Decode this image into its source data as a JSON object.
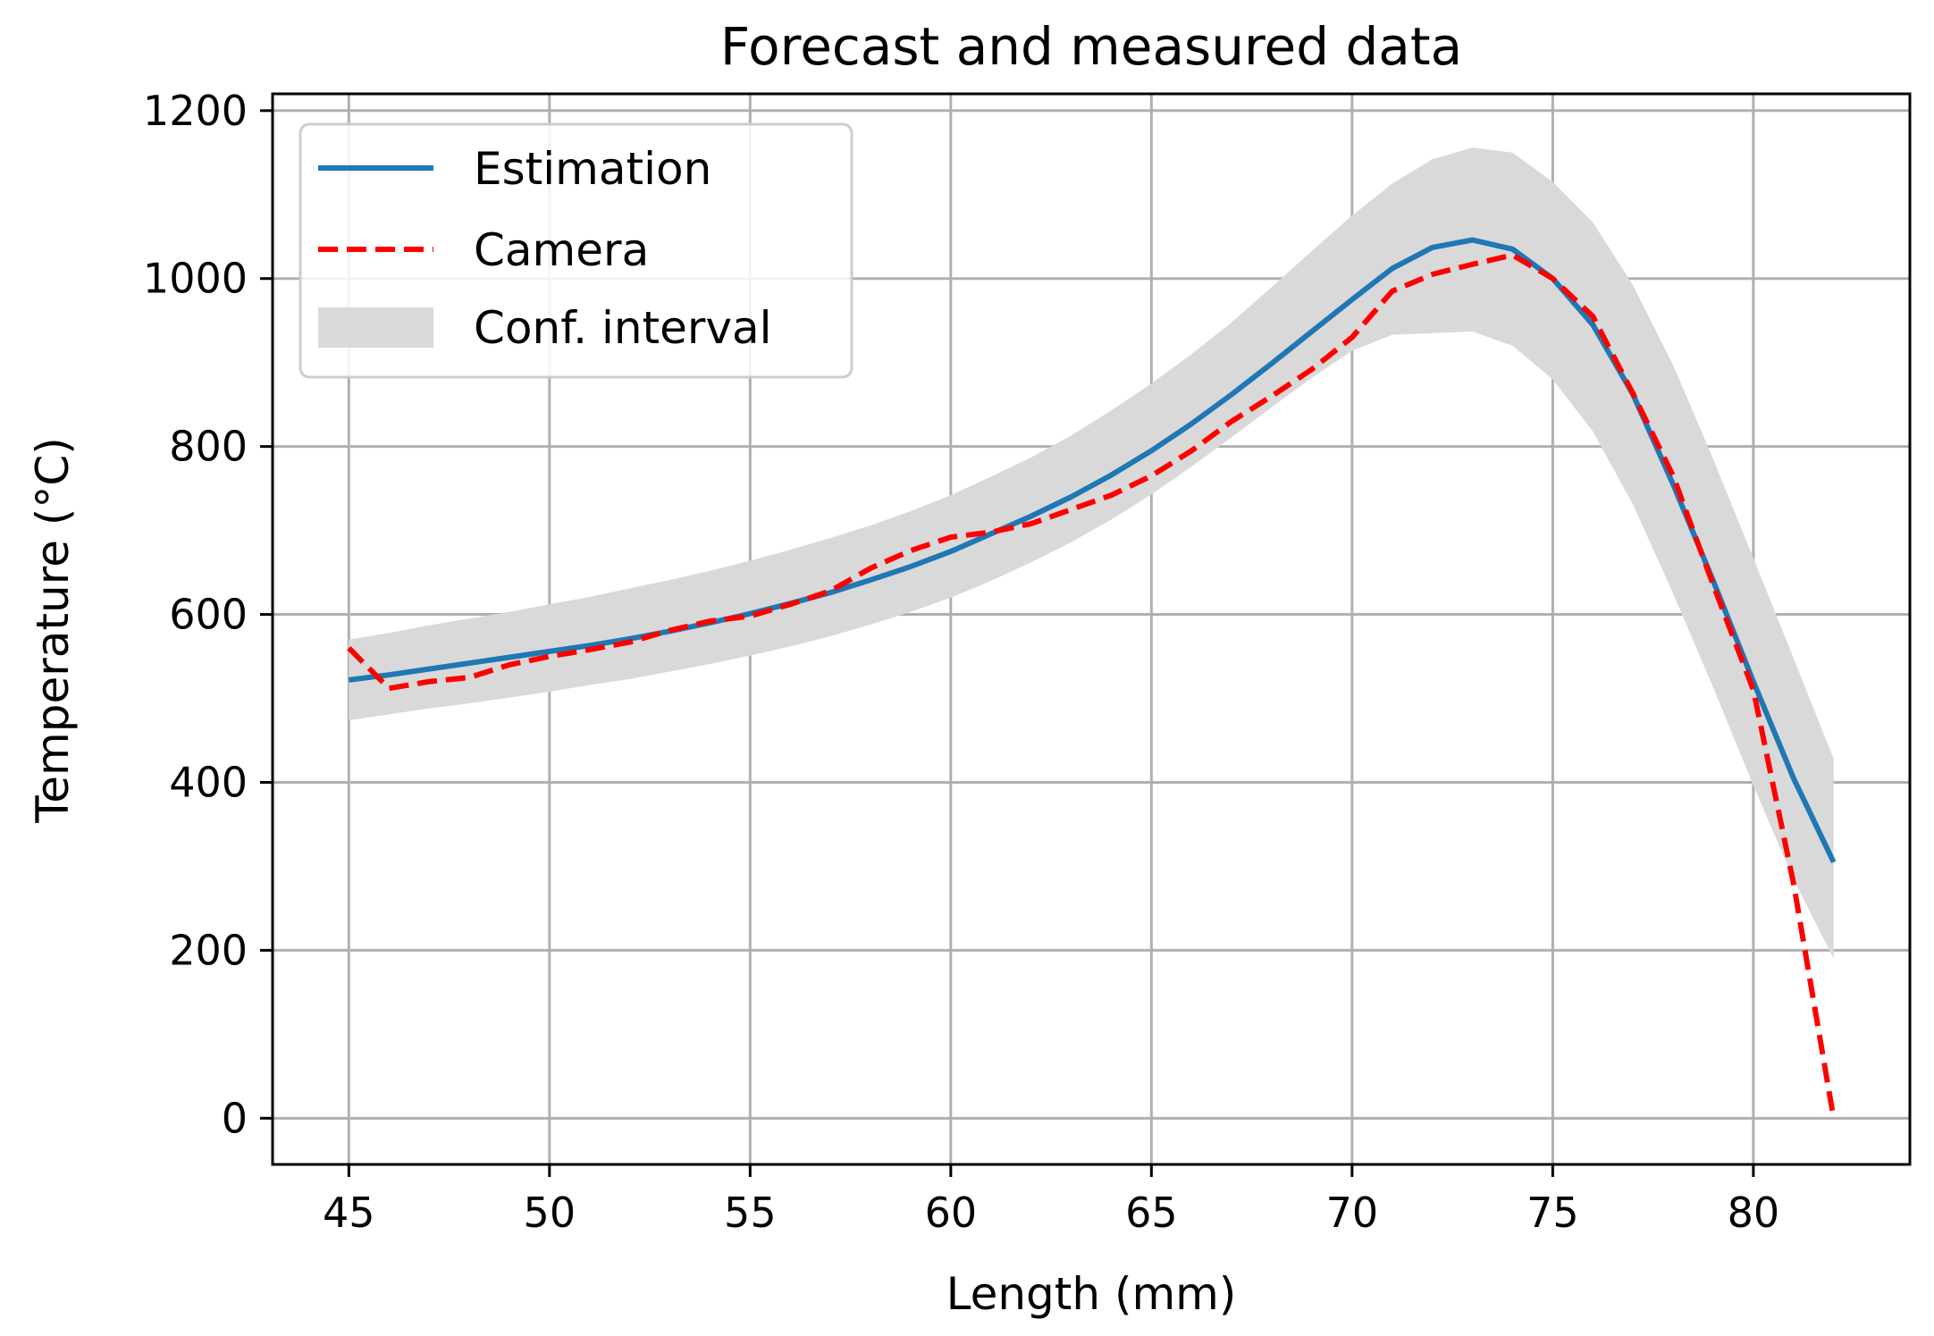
{
  "chart_data": {
    "type": "line",
    "title": "Forecast and measured data",
    "xlabel": "Length (mm)",
    "ylabel": "Temperature (°C)",
    "xlim": [
      43.1,
      83.9
    ],
    "ylim": [
      -55,
      1220
    ],
    "xticks": [
      45,
      50,
      55,
      60,
      65,
      70,
      75,
      80
    ],
    "yticks": [
      0,
      200,
      400,
      600,
      800,
      1000,
      1200
    ],
    "grid": true,
    "legend_position": "top-left",
    "legend": {
      "estimation": "Estimation",
      "camera": "Camera",
      "interval": "Conf. interval"
    },
    "colors": {
      "estimation": "#1f77b4",
      "camera": "#ff0000",
      "interval": "#d9d9d9",
      "grid": "#b0b0b0"
    },
    "x": [
      45,
      46,
      47,
      48,
      49,
      50,
      51,
      52,
      53,
      54,
      55,
      56,
      57,
      58,
      59,
      60,
      61,
      62,
      63,
      64,
      65,
      66,
      67,
      68,
      69,
      70,
      71,
      72,
      73,
      74,
      75,
      76,
      77,
      78,
      79,
      80,
      81,
      82
    ],
    "series": [
      {
        "name": "Estimation",
        "style": "solid",
        "values": [
          522,
          528,
          535,
          542,
          549,
          556,
          563,
          571,
          580,
          590,
          601,
          613,
          626,
          641,
          657,
          675,
          696,
          717,
          740,
          766,
          795,
          827,
          862,
          899,
          937,
          975,
          1012,
          1037,
          1046,
          1035,
          1000,
          945,
          862,
          755,
          640,
          520,
          405,
          305
        ]
      },
      {
        "name": "Camera",
        "style": "dashed",
        "values": [
          560,
          512,
          520,
          525,
          540,
          550,
          558,
          567,
          581,
          592,
          598,
          612,
          628,
          655,
          676,
          692,
          698,
          708,
          725,
          742,
          765,
          795,
          830,
          860,
          892,
          930,
          985,
          1005,
          1017,
          1028,
          1000,
          955,
          863,
          765,
          635,
          510,
          280,
          0
        ]
      }
    ],
    "interval": {
      "name": "Conf. interval",
      "upper": [
        570,
        578,
        587,
        595,
        603,
        612,
        621,
        631,
        641,
        652,
        664,
        677,
        691,
        706,
        723,
        742,
        764,
        787,
        813,
        843,
        875,
        910,
        948,
        990,
        1033,
        1075,
        1113,
        1142,
        1156,
        1150,
        1115,
        1067,
        992,
        897,
        785,
        667,
        548,
        428
      ],
      "lower": [
        474,
        481,
        488,
        494,
        501,
        508,
        516,
        523,
        532,
        541,
        551,
        562,
        574,
        588,
        603,
        620,
        640,
        662,
        686,
        713,
        743,
        776,
        811,
        847,
        882,
        914,
        933,
        935,
        937,
        920,
        880,
        818,
        731,
        625,
        513,
        396,
        285,
        190
      ]
    }
  }
}
